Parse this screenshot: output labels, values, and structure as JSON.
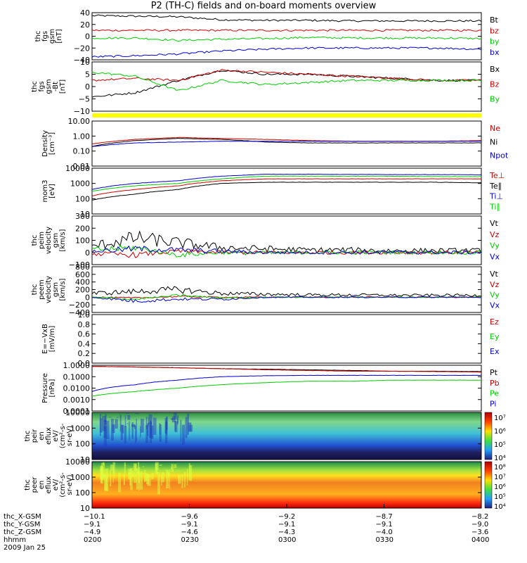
{
  "title": "P2 (TH-C) fields and on-board moments overview",
  "chart_data": [
    {
      "type": "line",
      "ylabel": [
        "thc",
        "fgs",
        "gsm",
        "[nT]"
      ],
      "ylim": [
        -40,
        40
      ],
      "yticks": [
        "40",
        "20",
        "0",
        "−20",
        "−40"
      ],
      "series": [
        {
          "name": "Bt",
          "color": "#000000",
          "values": [
            35,
            34,
            33,
            28,
            27,
            27,
            26,
            26,
            26,
            26
          ]
        },
        {
          "name": "bz",
          "color": "#cc0000",
          "values": [
            10,
            10,
            10,
            10,
            10,
            10,
            10,
            10,
            10,
            10
          ]
        },
        {
          "name": "by",
          "color": "#00cc00",
          "values": [
            -3,
            -3,
            -7,
            -5,
            -4,
            -2,
            -3,
            -3,
            -3,
            -4
          ]
        },
        {
          "name": "bx",
          "color": "#0000cc",
          "values": [
            -35,
            -33,
            -30,
            -25,
            -22,
            -20,
            -20,
            -20,
            -20,
            -22
          ]
        }
      ]
    },
    {
      "type": "line",
      "ylabel": [
        "thc",
        "fgs",
        "gsm",
        "-Bt",
        "[nT]"
      ],
      "ylim": [
        -12,
        12
      ],
      "yticks": [
        "10",
        "5",
        "0",
        "−5",
        "−10"
      ],
      "series": [
        {
          "name": "Bx",
          "color": "#000000",
          "values": [
            -5,
            -3,
            3,
            8,
            6,
            6,
            5,
            4,
            3,
            3
          ]
        },
        {
          "name": "Bz",
          "color": "#cc0000",
          "values": [
            3,
            4,
            3,
            8,
            7,
            6,
            5,
            4,
            3,
            3
          ]
        },
        {
          "name": "By",
          "color": "#00cc00",
          "values": [
            7,
            5,
            -2,
            3,
            1,
            2,
            3,
            3,
            3,
            3
          ]
        }
      ]
    },
    {
      "type": "line",
      "ylabel": [
        "Density",
        "[cm⁻³]"
      ],
      "yscale": "log",
      "ylim": [
        0.01,
        10
      ],
      "yticks": [
        "10.00",
        "1.00",
        "0.10",
        "0.01"
      ],
      "series": [
        {
          "name": "Ne",
          "color": "#cc0000",
          "values": [
            0.3,
            0.6,
            0.8,
            0.7,
            0.6,
            0.5,
            0.45,
            0.45,
            0.45,
            0.5
          ]
        },
        {
          "name": "Ni",
          "color": "#000000",
          "values": [
            0.2,
            0.5,
            0.7,
            0.6,
            0.4,
            0.35,
            0.35,
            0.35,
            0.35,
            0.35
          ]
        },
        {
          "name": "Npot",
          "color": "#0000cc",
          "values": [
            0.2,
            0.35,
            0.4,
            0.45,
            0.45,
            0.45,
            0.45,
            0.45,
            0.45,
            0.45
          ]
        }
      ]
    },
    {
      "type": "line",
      "ylabel": [
        "mom3",
        "[eV]"
      ],
      "yscale": "log",
      "ylim": [
        10,
        10000
      ],
      "yticks": [
        "10000",
        "1000",
        "100",
        "10"
      ],
      "series": [
        {
          "name": "Te⊥",
          "color": "#cc0000",
          "values": [
            150,
            400,
            700,
            1500,
            2000,
            2000,
            2000,
            2000,
            2000,
            2000
          ]
        },
        {
          "name": "Te∥",
          "color": "#000000",
          "values": [
            80,
            200,
            400,
            1000,
            1200,
            1200,
            1200,
            1200,
            1200,
            1100
          ]
        },
        {
          "name": "Ti⊥",
          "color": "#0000cc",
          "values": [
            400,
            1000,
            1500,
            3000,
            4000,
            4000,
            3900,
            3800,
            3800,
            3700
          ]
        },
        {
          "name": "Ti∥",
          "color": "#00cc00",
          "values": [
            300,
            700,
            1000,
            2000,
            3000,
            3000,
            3000,
            3000,
            2800,
            2800
          ]
        }
      ]
    },
    {
      "type": "line",
      "ylabel": [
        "thc",
        "peim",
        "velocity",
        "gsm",
        "[km/s]"
      ],
      "ylim": [
        -100,
        300
      ],
      "yticks": [
        "300",
        "200",
        "100",
        "0",
        "−100"
      ],
      "series": [
        {
          "name": "Vt",
          "color": "#000000",
          "values": [
            50,
            120,
            80,
            40,
            30,
            20,
            20,
            15,
            15,
            15
          ]
        },
        {
          "name": "Vz",
          "color": "#cc0000",
          "values": [
            -10,
            -20,
            10,
            0,
            0,
            0,
            0,
            0,
            0,
            0
          ]
        },
        {
          "name": "Vy",
          "color": "#00cc00",
          "values": [
            20,
            40,
            -20,
            0,
            -5,
            0,
            0,
            0,
            0,
            0
          ]
        },
        {
          "name": "Vx",
          "color": "#0000cc",
          "values": [
            10,
            30,
            20,
            10,
            0,
            0,
            0,
            0,
            0,
            0
          ]
        }
      ]
    },
    {
      "type": "line",
      "ylabel": [
        "thc",
        "peem",
        "velocity",
        "gsm",
        "[km/s]"
      ],
      "ylim": [
        -400,
        800
      ],
      "yticks": [
        "800",
        "600",
        "400",
        "200",
        "0",
        "−200",
        "−400"
      ],
      "series": [
        {
          "name": "Vt",
          "color": "#000000",
          "values": [
            100,
            150,
            200,
            100,
            80,
            60,
            60,
            50,
            50,
            50
          ]
        },
        {
          "name": "Vz",
          "color": "#cc0000",
          "values": [
            0,
            -20,
            20,
            0,
            0,
            0,
            0,
            0,
            0,
            0
          ]
        },
        {
          "name": "Vy",
          "color": "#00cc00",
          "values": [
            0,
            -50,
            50,
            -20,
            0,
            0,
            0,
            0,
            0,
            0
          ]
        },
        {
          "name": "Vx",
          "color": "#0000cc",
          "values": [
            0,
            -100,
            -50,
            -50,
            0,
            0,
            0,
            0,
            0,
            0
          ]
        }
      ]
    },
    {
      "type": "line",
      "ylabel": [
        "E=−VxB",
        "[mV/m]"
      ],
      "ylim": [
        0,
        1
      ],
      "yticks": [
        "1.0",
        "0.8",
        "0.6",
        "0.4",
        "0.2",
        "0.0"
      ],
      "series": [
        {
          "name": "Ez",
          "color": "#cc0000",
          "values": []
        },
        {
          "name": "Ey",
          "color": "#00cc00",
          "values": []
        },
        {
          "name": "Ex",
          "color": "#0000cc",
          "values": []
        }
      ]
    },
    {
      "type": "line",
      "ylabel": [
        "Pressure",
        "[nPa]"
      ],
      "yscale": "log",
      "ylim": [
        0.0001,
        1
      ],
      "yticks": [
        "1.0000",
        "0.1000",
        "0.0100",
        "0.0010",
        "0.0001"
      ],
      "series": [
        {
          "name": "Pt",
          "color": "#000000",
          "values": [
            0.8,
            0.7,
            0.6,
            0.5,
            0.45,
            0.4,
            0.35,
            0.3,
            0.3,
            0.28
          ]
        },
        {
          "name": "Pb",
          "color": "#cc0000",
          "values": [
            0.8,
            0.7,
            0.6,
            0.5,
            0.4,
            0.35,
            0.3,
            0.3,
            0.28,
            0.25
          ]
        },
        {
          "name": "Pe",
          "color": "#00cc00",
          "values": [
            0.002,
            0.005,
            0.01,
            0.02,
            0.03,
            0.04,
            0.04,
            0.05,
            0.05,
            0.05
          ]
        },
        {
          "name": "Pi",
          "color": "#0000cc",
          "values": [
            0.005,
            0.02,
            0.05,
            0.1,
            0.12,
            0.13,
            0.13,
            0.13,
            0.13,
            0.13
          ]
        }
      ]
    },
    {
      "type": "heatmap",
      "ylabel": [
        "thc",
        "peir",
        "en",
        "eflux",
        "eV/",
        "(cm²-s-",
        "sr-eV)"
      ],
      "yscale": "log",
      "ylim": [
        10,
        20000
      ],
      "yticks": [
        "10000",
        "1000",
        "100",
        "10"
      ],
      "colorbar_ticks": [
        "10⁷",
        "10⁶",
        "10⁵",
        "10⁴"
      ]
    },
    {
      "type": "heatmap",
      "ylabel": [
        "thc",
        "peer",
        "en",
        "eflux",
        "eV/",
        "(cm²-s-",
        "sr-eV)"
      ],
      "yscale": "log",
      "ylim": [
        10,
        20000
      ],
      "yticks": [
        "10000",
        "1000",
        "100",
        "10"
      ],
      "colorbar_ticks": [
        "10⁸",
        "10⁷",
        "10⁶",
        "10⁵",
        "10⁴"
      ]
    }
  ],
  "gap_bar_color": "#ffff00",
  "x_axis": {
    "row_labels": [
      "thc_X-GSM",
      "thc_Y-GSM",
      "thc_Z-GSM",
      "hhmm"
    ],
    "date": "2009 Jan 25",
    "columns": [
      [
        "−10.1",
        "−9.1",
        "−4.9",
        "0200"
      ],
      [
        "−9.6",
        "−9.1",
        "−4.6",
        "0230"
      ],
      [
        "−9.2",
        "−9.1",
        "−4.3",
        "0300"
      ],
      [
        "−8.7",
        "−9.1",
        "−4.0",
        "0330"
      ],
      [
        "−8.2",
        "−9.0",
        "−3.6",
        "0400"
      ]
    ]
  }
}
